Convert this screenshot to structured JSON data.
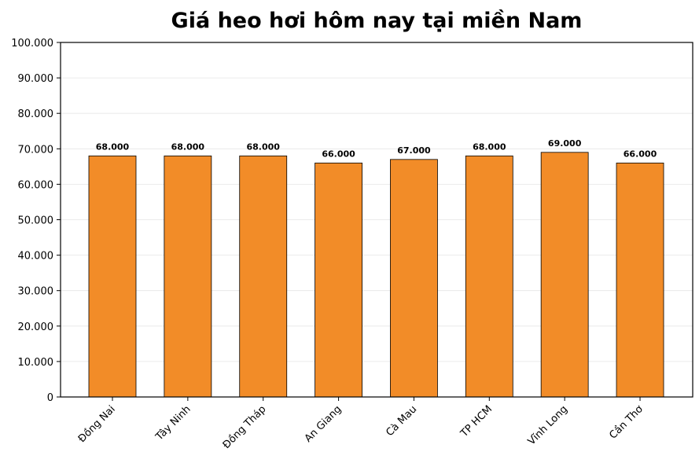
{
  "chart_data": {
    "type": "bar",
    "title": "Giá heo hơi hôm nay tại miền Nam",
    "categories": [
      "Đồng Nai",
      "Tây Ninh",
      "Đồng Tháp",
      "An Giang",
      "Cà Mau",
      "TP HCM",
      "Vĩnh Long",
      "Cần Thơ"
    ],
    "values": [
      68000,
      68000,
      68000,
      66000,
      67000,
      68000,
      69000,
      66000
    ],
    "value_labels": [
      "68.000",
      "68.000",
      "68.000",
      "66.000",
      "67.000",
      "68.000",
      "69.000",
      "66.000"
    ],
    "color": "#f28c28",
    "ylim": [
      0,
      100000
    ],
    "yticks": [
      0,
      {
        "value": 10000,
        "label": "10.000"
      },
      {
        "value": 20000,
        "label": "20.000"
      },
      {
        "value": 30000,
        "label": "30.000"
      },
      {
        "value": 40000,
        "label": "40.000"
      },
      {
        "value": 50000,
        "label": "50.000"
      },
      {
        "value": 60000,
        "label": "60.000"
      },
      {
        "value": 70000,
        "label": "70.000"
      },
      {
        "value": 80000,
        "label": "80.000"
      },
      {
        "value": 90000,
        "label": "90.000"
      },
      {
        "value": 100000,
        "label": "100.000"
      }
    ],
    "grid": true
  }
}
